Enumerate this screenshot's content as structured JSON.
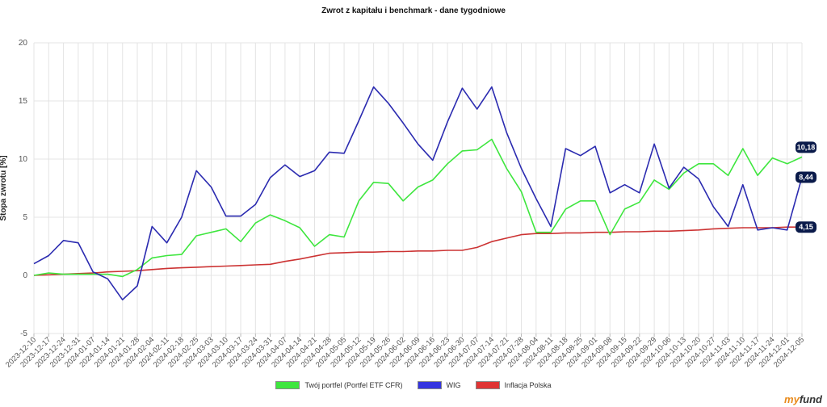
{
  "chart_data": {
    "type": "line",
    "title": "Zwrot z kapitału i benchmark - dane tygodniowe",
    "ylabel": "Stopa zwrotu [%]",
    "xlabel": "",
    "ylim": [
      -5,
      20
    ],
    "yticks": [
      -5,
      0,
      5,
      10,
      15,
      20
    ],
    "grid": true,
    "legend_position": "bottom",
    "x": [
      "2023-12-10",
      "2023-12-17",
      "2023-12-24",
      "2023-12-31",
      "2024-01-07",
      "2024-01-14",
      "2024-01-21",
      "2024-01-28",
      "2024-02-04",
      "2024-02-11",
      "2024-02-18",
      "2024-02-25",
      "2024-03-03",
      "2024-03-10",
      "2024-03-17",
      "2024-03-24",
      "2024-03-31",
      "2024-04-07",
      "2024-04-14",
      "2024-04-21",
      "2024-04-28",
      "2024-05-05",
      "2024-05-12",
      "2024-05-19",
      "2024-05-26",
      "2024-06-02",
      "2024-06-09",
      "2024-06-16",
      "2024-06-23",
      "2024-06-30",
      "2024-07-07",
      "2024-07-14",
      "2024-07-21",
      "2024-07-28",
      "2024-08-04",
      "2024-08-11",
      "2024-08-18",
      "2024-08-25",
      "2024-09-01",
      "2024-09-08",
      "2024-09-15",
      "2024-09-22",
      "2024-09-29",
      "2024-10-06",
      "2024-10-13",
      "2024-10-20",
      "2024-10-27",
      "2024-11-03",
      "2024-11-10",
      "2024-11-17",
      "2024-11-24",
      "2024-12-01",
      "2024-12-05"
    ],
    "series": [
      {
        "name": "Twój portfel (Portfel ETF CFR)",
        "color": "#3ee63e",
        "values": [
          0.0,
          0.2,
          0.1,
          0.1,
          0.1,
          0.1,
          -0.1,
          0.5,
          1.5,
          1.7,
          1.8,
          3.4,
          3.7,
          4.0,
          2.9,
          4.5,
          5.2,
          4.7,
          4.1,
          2.5,
          3.5,
          3.3,
          6.4,
          8.0,
          7.9,
          6.4,
          7.6,
          8.2,
          9.6,
          10.7,
          10.8,
          11.7,
          9.2,
          7.2,
          3.7,
          3.7,
          5.7,
          6.4,
          6.4,
          3.5,
          5.7,
          6.3,
          8.2,
          7.4,
          8.8,
          9.6,
          9.6,
          8.6,
          10.9,
          8.6,
          10.1,
          9.6,
          10.18
        ]
      },
      {
        "name": "WIG",
        "color": "#2b2bb0",
        "values": [
          1.0,
          1.7,
          3.0,
          2.8,
          0.3,
          -0.3,
          -2.1,
          -0.9,
          4.2,
          2.8,
          5.0,
          9.0,
          7.6,
          5.1,
          5.1,
          6.1,
          8.4,
          9.5,
          8.5,
          9.0,
          10.6,
          10.5,
          13.3,
          16.2,
          14.8,
          13.1,
          11.3,
          9.9,
          13.2,
          16.1,
          14.3,
          16.2,
          12.3,
          9.2,
          6.6,
          4.2,
          10.9,
          10.3,
          11.1,
          7.1,
          7.8,
          7.1,
          11.3,
          7.5,
          9.3,
          8.3,
          5.9,
          4.2,
          7.8,
          3.9,
          4.1,
          3.9,
          8.44
        ]
      },
      {
        "name": "Inflacja  Polska",
        "color": "#cc3333",
        "values": [
          0.0,
          0.05,
          0.1,
          0.15,
          0.2,
          0.3,
          0.35,
          0.4,
          0.5,
          0.6,
          0.65,
          0.7,
          0.75,
          0.8,
          0.85,
          0.9,
          0.95,
          1.2,
          1.4,
          1.65,
          1.9,
          1.95,
          2.0,
          2.0,
          2.05,
          2.05,
          2.1,
          2.1,
          2.15,
          2.15,
          2.4,
          2.9,
          3.2,
          3.5,
          3.6,
          3.6,
          3.65,
          3.65,
          3.7,
          3.7,
          3.75,
          3.75,
          3.8,
          3.8,
          3.85,
          3.9,
          4.0,
          4.05,
          4.1,
          4.1,
          4.1,
          4.15,
          4.15
        ]
      }
    ],
    "end_labels": [
      "10,18",
      "8,44",
      "4,15"
    ],
    "end_label_bg": "#0a1a4a"
  },
  "brand": {
    "prefix": "my",
    "suffix": "fund"
  }
}
